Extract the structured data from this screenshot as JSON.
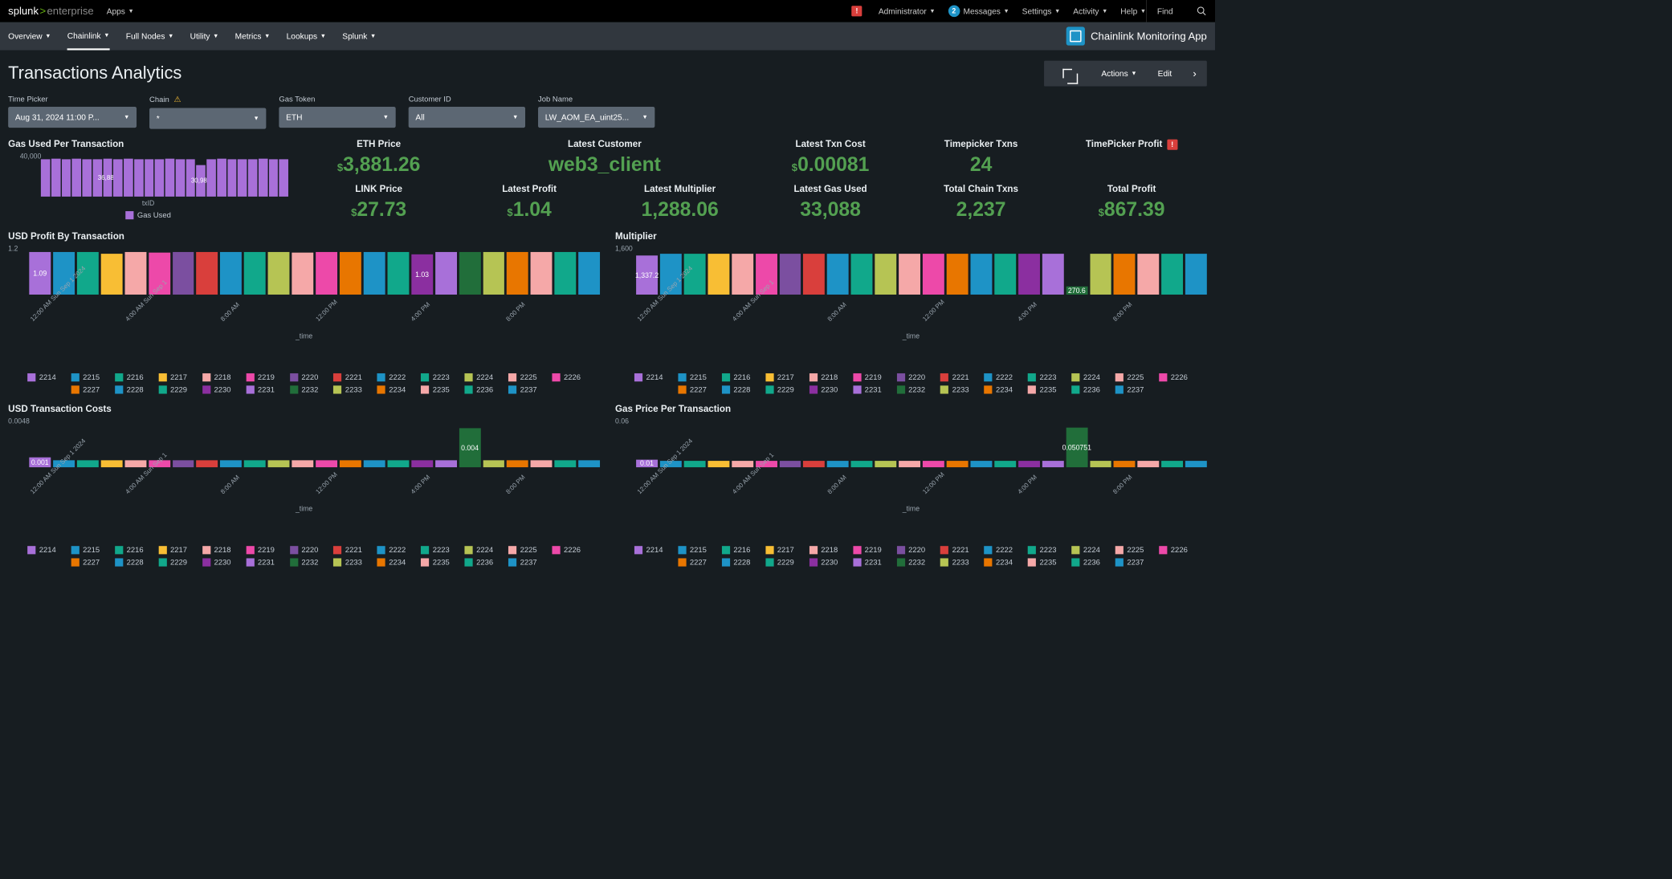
{
  "brand": {
    "sp": "splunk",
    "ent": "enterprise"
  },
  "topmenu": {
    "apps": "Apps",
    "admin": "Administrator",
    "messages": "Messages",
    "messages_count": "2",
    "settings": "Settings",
    "activity": "Activity",
    "help": "Help",
    "find": "Find"
  },
  "nav": {
    "tabs": [
      "Overview",
      "Chainlink",
      "Full Nodes",
      "Utility",
      "Metrics",
      "Lookups",
      "Splunk"
    ],
    "active": 1,
    "appname": "Chainlink Monitoring App"
  },
  "title": "Transactions Analytics",
  "actions": {
    "actions": "Actions",
    "edit": "Edit"
  },
  "filters": {
    "time": {
      "label": "Time Picker",
      "value": "Aug 31, 2024 11:00 P..."
    },
    "chain": {
      "label": "Chain",
      "value": "*",
      "warn": true
    },
    "gas": {
      "label": "Gas Token",
      "value": "ETH"
    },
    "cust": {
      "label": "Customer ID",
      "value": "All"
    },
    "job": {
      "label": "Job Name",
      "value": "LW_AOM_EA_uint25..."
    }
  },
  "gaschart": {
    "title": "Gas Used Per Transaction",
    "ylabel": "40,000",
    "xlabel": "txID",
    "legend": "Gas Used",
    "legend_color": "#a870d9",
    "bars": [
      36800,
      36900,
      36800,
      36900,
      36850,
      36800,
      36884,
      36800,
      36900,
      36800,
      36850,
      36800,
      36900,
      36800,
      36850,
      30980,
      36800,
      36900,
      36800,
      36850,
      36800,
      36900,
      36800,
      36800
    ],
    "labels": {
      "6": "36,884",
      "15": "30,980"
    },
    "ymax": 40000
  },
  "metrics": [
    {
      "lbl": "ETH Price",
      "val": "3,881.26",
      "cur": "$"
    },
    {
      "lbl": "Latest Customer",
      "val": "web3_client",
      "wide": true
    },
    {
      "lbl": "Latest Txn Cost",
      "val": "0.00081",
      "cur": "$"
    },
    {
      "lbl": "Timepicker Txns",
      "val": "24"
    },
    {
      "lbl": "TimePicker Profit",
      "val": "",
      "blank": true,
      "alert": true
    },
    {
      "lbl": "LINK Price",
      "val": "27.73",
      "cur": "$"
    },
    {
      "lbl": "Latest Profit",
      "val": "1.04",
      "cur": "$"
    },
    {
      "lbl": "Latest Multiplier",
      "val": "1,288.06"
    },
    {
      "lbl": "Latest Gas Used",
      "val": "33,088"
    },
    {
      "lbl": "Total Chain Txns",
      "val": "2,237"
    },
    {
      "lbl": "Total Profit",
      "val": "867.39",
      "cur": "$"
    }
  ],
  "series_colors": [
    "#a870d9",
    "#1e93c6",
    "#11a88b",
    "#f8be34",
    "#f5a8a8",
    "#ed49a9",
    "#7b4fa0",
    "#d93f3c",
    "#1e93c6",
    "#11a88b",
    "#b6c454",
    "#f5a8a8",
    "#ed49a9",
    "#e87600",
    "#1e93c6",
    "#11a88b",
    "#8b2fa0",
    "#a870d9",
    "#216e3a",
    "#b6c454",
    "#e87600",
    "#f5a8a8",
    "#11a88b",
    "#1e93c6"
  ],
  "series_ids": [
    "2214",
    "2215",
    "2216",
    "2217",
    "2218",
    "2219",
    "2220",
    "2221",
    "2222",
    "2223",
    "2224",
    "2225",
    "2226",
    "2227",
    "2228",
    "2229",
    "2230",
    "2231",
    "2232",
    "2233",
    "2234",
    "2235",
    "2236",
    "2237"
  ],
  "profit": {
    "title": "USD Profit By Transaction",
    "ylabel": "1.2",
    "ymax": 1.2,
    "xlabel": "_time",
    "bars": [
      1.09,
      1.1,
      1.1,
      1.05,
      1.1,
      1.08,
      1.1,
      1.1,
      1.1,
      1.1,
      1.1,
      1.08,
      1.1,
      1.1,
      1.1,
      1.1,
      1.03,
      1.1,
      1.1,
      1.1,
      1.1,
      1.1,
      1.1,
      1.1
    ],
    "labels": {
      "0": "1.09",
      "16": "1.03"
    }
  },
  "multiplier": {
    "title": "Multiplier",
    "ylabel": "1,600",
    "ymax": 1600,
    "xlabel": "_time",
    "bars": [
      1337.2,
      1400,
      1400,
      1400,
      1400,
      1400,
      1400,
      1400,
      1400,
      1400,
      1400,
      1400,
      1400,
      1400,
      1400,
      1400,
      1400,
      1400,
      270.6,
      1400,
      1400,
      1400,
      1400,
      1400
    ],
    "labels": {
      "0": "1,337.2",
      "18": "270.6"
    }
  },
  "txncost": {
    "title": "USD Transaction Costs",
    "ylabel": "0.0048",
    "ymax": 0.0048,
    "xlabel": "_time",
    "bars": [
      0.001,
      0.0007,
      0.0007,
      0.0007,
      0.0007,
      0.0007,
      0.0007,
      0.0007,
      0.0007,
      0.0007,
      0.0007,
      0.0007,
      0.0007,
      0.0007,
      0.0007,
      0.0007,
      0.0007,
      0.0007,
      0.004,
      0.0007,
      0.0007,
      0.0007,
      0.0007,
      0.0007
    ],
    "labels": {
      "0": "0.001",
      "18": "0.004"
    }
  },
  "gasprice": {
    "title": "Gas Price Per Transaction",
    "ylabel": "0.06",
    "ymax": 0.06,
    "xlabel": "_time",
    "bars": [
      0.01,
      0.008,
      0.008,
      0.008,
      0.008,
      0.008,
      0.008,
      0.008,
      0.008,
      0.008,
      0.008,
      0.008,
      0.008,
      0.008,
      0.008,
      0.008,
      0.008,
      0.008,
      0.050751,
      0.008,
      0.008,
      0.008,
      0.008,
      0.008
    ],
    "labels": {
      "0": "0.01",
      "18": "0.050751"
    }
  },
  "timeticks": [
    "12:00 AM Sun Sep 1 2024",
    "4:00 AM Sun Sep 1",
    "8:00 AM",
    "12:00 PM",
    "4:00 PM",
    "8:00 PM"
  ]
}
